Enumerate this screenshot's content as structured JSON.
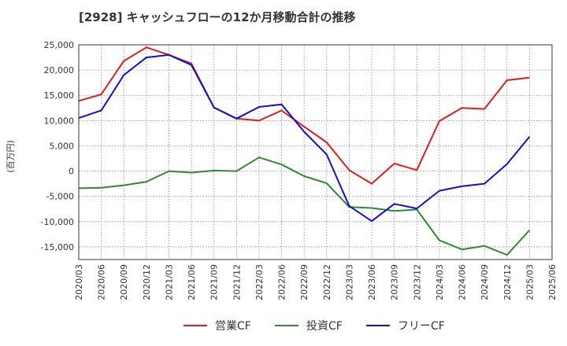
{
  "chart_data": {
    "type": "line",
    "title": "[2928]  キャッシュフローの12か月移動合計の推移",
    "ylabel": "(百万円)",
    "xlabel": "",
    "ylim": [
      -17500,
      25000
    ],
    "yticks": [
      -15000,
      -10000,
      -5000,
      0,
      5000,
      10000,
      15000,
      20000,
      25000
    ],
    "ytick_labels": [
      "-15,000",
      "-10,000",
      "-5,000",
      "0",
      "5,000",
      "10,000",
      "15,000",
      "20,000",
      "25,000"
    ],
    "categories": [
      "2020/03",
      "2020/06",
      "2020/09",
      "2020/12",
      "2021/03",
      "2021/06",
      "2021/09",
      "2021/12",
      "2022/03",
      "2022/06",
      "2022/09",
      "2022/12",
      "2023/03",
      "2023/06",
      "2023/09",
      "2023/12",
      "2024/03",
      "2024/06",
      "2024/09",
      "2024/12",
      "2025/03",
      "2025/06"
    ],
    "grid": true,
    "legend_position": "bottom",
    "series": [
      {
        "name": "営業CF",
        "color": "#e31a1c",
        "values": [
          13900,
          15200,
          21800,
          24500,
          23000,
          21300,
          12600,
          10400,
          10000,
          12000,
          8800,
          5700,
          200,
          -2500,
          1500,
          200,
          9900,
          12500,
          12300,
          18000,
          18500,
          null
        ]
      },
      {
        "name": "投資CF",
        "color": "#2e8b2e",
        "values": [
          -3400,
          -3300,
          -2800,
          -2100,
          0,
          -300,
          100,
          0,
          2700,
          1300,
          -1000,
          -2400,
          -7100,
          -7300,
          -7900,
          -7600,
          -13700,
          -15500,
          -14800,
          -16600,
          -11700,
          null
        ]
      },
      {
        "name": "フリーCF",
        "color": "#1010d0",
        "values": [
          10500,
          12000,
          19000,
          22500,
          23000,
          21000,
          12600,
          10400,
          12700,
          13200,
          7800,
          3300,
          -6900,
          -9900,
          -6500,
          -7400,
          -3900,
          -3000,
          -2500,
          1400,
          6800,
          null
        ]
      }
    ]
  }
}
